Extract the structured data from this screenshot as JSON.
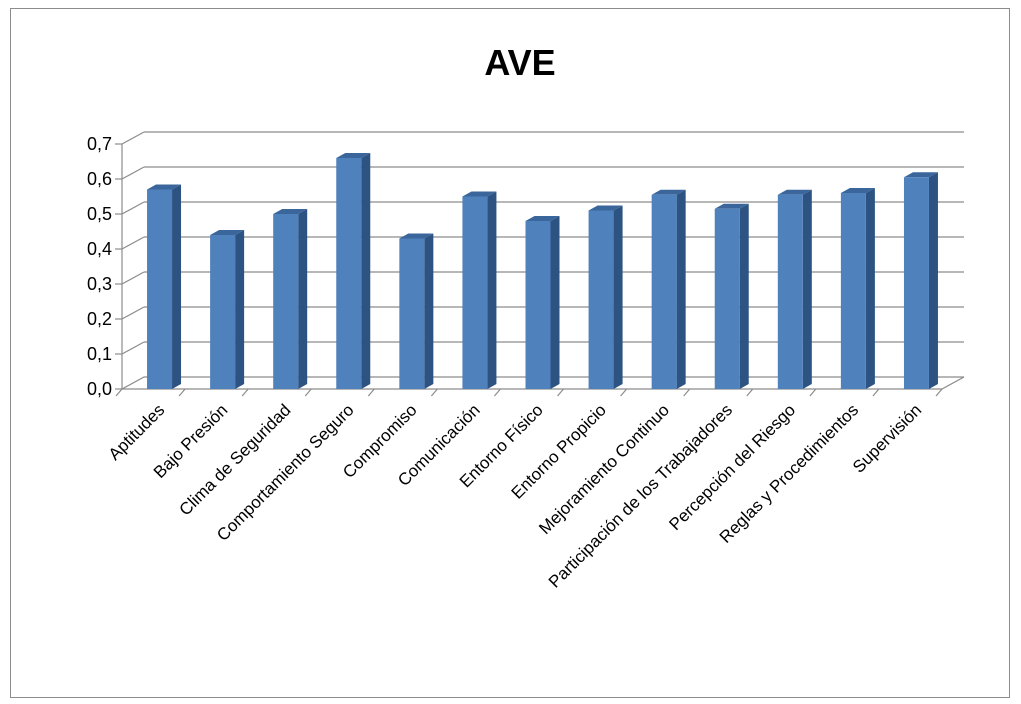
{
  "chart_data": {
    "type": "bar",
    "title": "AVE",
    "xlabel": "",
    "ylabel": "",
    "ylim": [
      0,
      0.7
    ],
    "yticks": [
      "0,0",
      "0,1",
      "0,2",
      "0,3",
      "0,4",
      "0,5",
      "0,6",
      "0,7"
    ],
    "grid": true,
    "legend": "none",
    "bar_color": "#4f81bd",
    "categories": [
      "Aptitudes",
      "Bajo Presión",
      "Clima de Seguridad",
      "Comportamiento Seguro",
      "Compromiso",
      "Comunicación",
      "Entorno Físico",
      "Entorno Propicio",
      "Mejoramiento Continuo",
      "Participación de los Trabajadores",
      "Percepción del Riesgo",
      "Reglas y Procedimientos",
      "Supervisión"
    ],
    "values": [
      0.57,
      0.44,
      0.5,
      0.66,
      0.43,
      0.55,
      0.48,
      0.51,
      0.555,
      0.515,
      0.555,
      0.56,
      0.605
    ]
  }
}
